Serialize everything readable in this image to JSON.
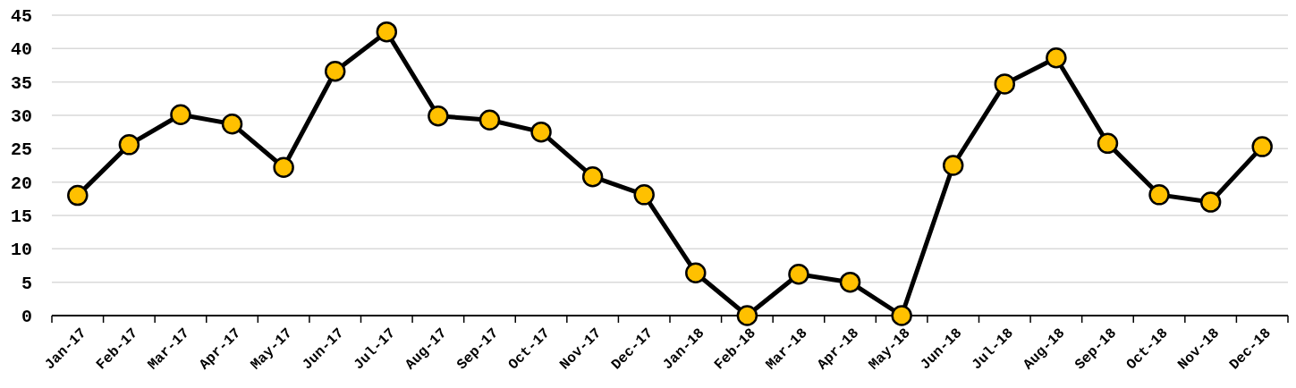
{
  "chart_data": {
    "type": "line",
    "categories": [
      "Jan-17",
      "Feb-17",
      "Mar-17",
      "Apr-17",
      "May-17",
      "Jun-17",
      "Jul-17",
      "Aug-17",
      "Sep-17",
      "Oct-17",
      "Nov-17",
      "Dec-17",
      "Jan-18",
      "Feb-18",
      "Mar-18",
      "Apr-18",
      "May-18",
      "Jun-18",
      "Jul-18",
      "Aug-18",
      "Sep-18",
      "Oct-18",
      "Nov-18",
      "Dec-18"
    ],
    "series": [
      {
        "color": "#000000",
        "values": [
          18,
          25.6,
          30.1,
          28.7,
          22.2,
          36.6,
          42.5,
          29.9,
          29.3,
          27.5,
          20.8,
          18.1,
          6.4,
          0,
          6.2,
          5,
          0,
          22.5,
          34.7,
          38.6,
          25.8,
          18.1,
          17,
          25.3
        ]
      }
    ],
    "ylim": [
      0,
      45
    ],
    "yticks": [
      0,
      5,
      10,
      15,
      20,
      25,
      30,
      35,
      40,
      45
    ],
    "grid": "y",
    "marker": "circle",
    "line_style": "solid"
  }
}
